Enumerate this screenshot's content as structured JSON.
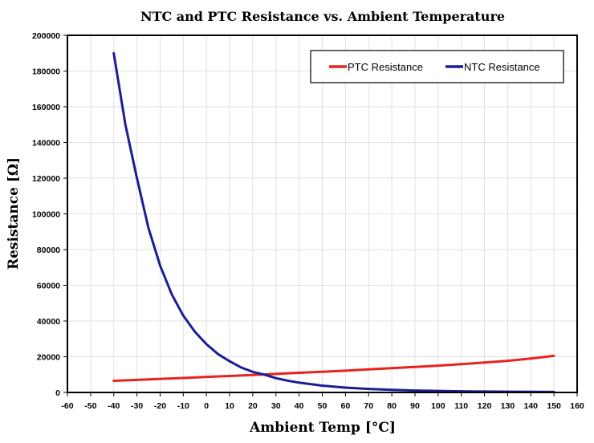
{
  "chart_data": {
    "type": "line",
    "title": "NTC and PTC Resistance vs. Ambient Temperature",
    "xlabel": "Ambient Temp [°C]",
    "ylabel": "Resistance [Ω]",
    "xlim": [
      -60,
      160
    ],
    "ylim": [
      0,
      200000
    ],
    "x_ticks": [
      -60,
      -50,
      -40,
      -30,
      -20,
      -10,
      0,
      10,
      20,
      30,
      40,
      50,
      60,
      70,
      80,
      90,
      100,
      110,
      120,
      130,
      140,
      150,
      160
    ],
    "y_ticks": [
      0,
      20000,
      40000,
      60000,
      80000,
      100000,
      120000,
      140000,
      160000,
      180000,
      200000
    ],
    "grid": true,
    "legend_position": "top-right",
    "series": [
      {
        "name": "PTC Resistance",
        "color": "#e8231f",
        "x": [
          -40,
          -30,
          -20,
          -10,
          0,
          10,
          20,
          30,
          40,
          50,
          60,
          70,
          80,
          90,
          100,
          110,
          120,
          130,
          140,
          150
        ],
        "y": [
          6500,
          7000,
          7600,
          8100,
          8700,
          9200,
          9800,
          10400,
          11000,
          11600,
          12200,
          12900,
          13600,
          14300,
          15000,
          15800,
          16700,
          17700,
          19000,
          20500
        ]
      },
      {
        "name": "NTC Resistance",
        "color": "#1c1c96",
        "x": [
          -40,
          -35,
          -30,
          -25,
          -20,
          -15,
          -10,
          -5,
          0,
          5,
          10,
          15,
          20,
          25,
          30,
          35,
          40,
          50,
          60,
          70,
          80,
          90,
          100,
          110,
          120,
          130,
          140,
          150
        ],
        "y": [
          190000,
          150000,
          120000,
          92000,
          71000,
          55000,
          43000,
          34000,
          27000,
          21500,
          17500,
          14000,
          11500,
          10000,
          8000,
          6600,
          5500,
          3800,
          2700,
          2000,
          1500,
          1100,
          850,
          650,
          500,
          400,
          330,
          270
        ]
      }
    ]
  }
}
